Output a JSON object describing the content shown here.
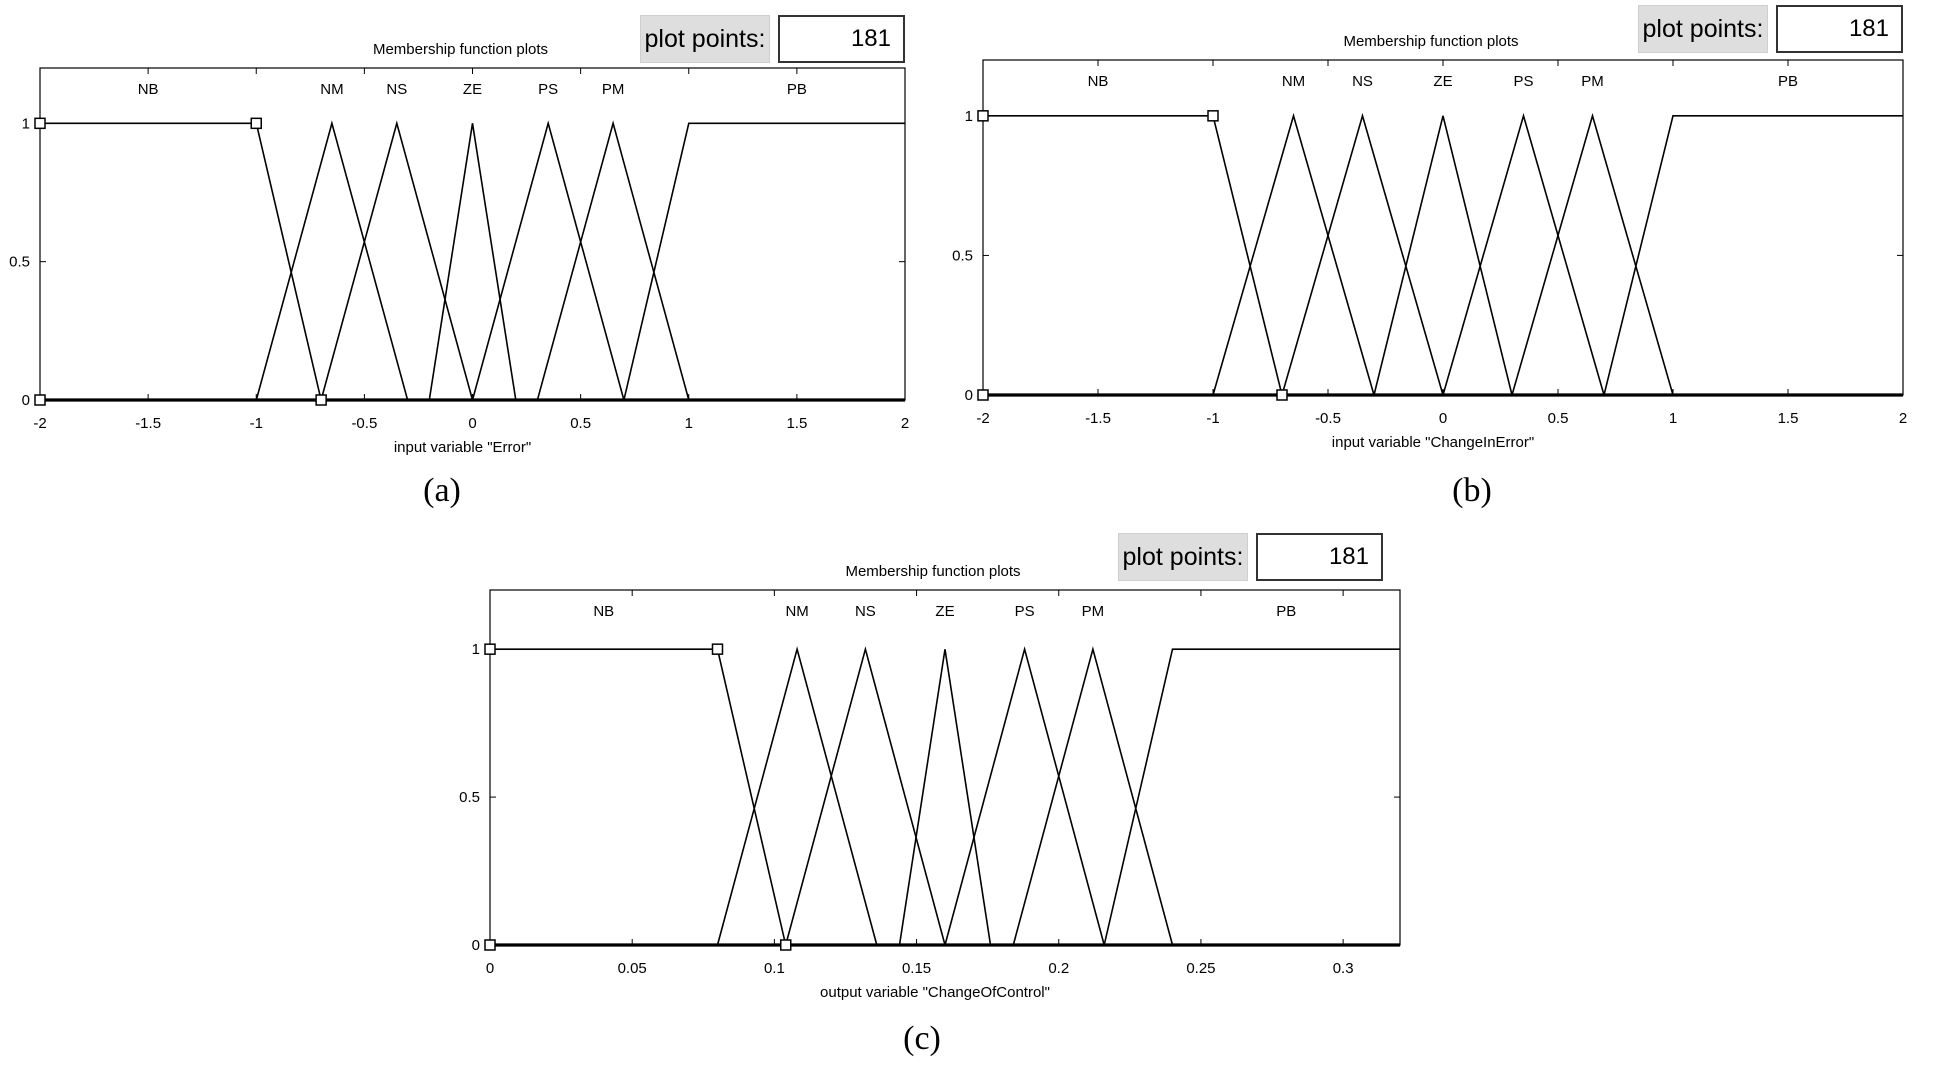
{
  "plot_points_label": "plot points:",
  "chart_data": [
    {
      "type": "line",
      "panel_title": "Membership function plots",
      "plot_points": "181",
      "caption": "(a)",
      "xlabel": "input variable \"Error\"",
      "xlim": [
        -2,
        2
      ],
      "ylim": [
        0,
        1.2
      ],
      "x_ticks": [
        -2,
        -1.5,
        -1,
        -0.5,
        0,
        0.5,
        1,
        1.5,
        2
      ],
      "x_tick_labels": [
        "-2",
        "-1.5",
        "-1",
        "-0.5",
        "0",
        "0.5",
        "1",
        "1.5",
        "2"
      ],
      "y_ticks": [
        0,
        0.5,
        1
      ],
      "y_tick_labels": [
        "0",
        "0.5",
        "1"
      ],
      "grid": false,
      "series": [
        {
          "name": "NB",
          "x": [
            -2,
            -1,
            -0.7
          ],
          "y": [
            1,
            1,
            0
          ],
          "label_x": -1.5
        },
        {
          "name": "NM",
          "x": [
            -1,
            -0.65,
            -0.3
          ],
          "y": [
            0,
            1,
            0
          ],
          "label_x": -0.65
        },
        {
          "name": "NS",
          "x": [
            -0.7,
            -0.35,
            0
          ],
          "y": [
            0,
            1,
            0
          ],
          "label_x": -0.35
        },
        {
          "name": "ZE",
          "x": [
            -0.2,
            0,
            0.2
          ],
          "y": [
            0,
            1,
            0
          ],
          "label_x": 0
        },
        {
          "name": "PS",
          "x": [
            0,
            0.35,
            0.7
          ],
          "y": [
            0,
            1,
            0
          ],
          "label_x": 0.35
        },
        {
          "name": "PM",
          "x": [
            0.3,
            0.65,
            1
          ],
          "y": [
            0,
            1,
            0
          ],
          "label_x": 0.65
        },
        {
          "name": "PB",
          "x": [
            0.7,
            1,
            2
          ],
          "y": [
            0,
            1,
            1
          ],
          "label_x": 1.5
        }
      ]
    },
    {
      "type": "line",
      "panel_title": "Membership function plots",
      "plot_points": "181",
      "caption": "(b)",
      "xlabel": "input variable \"ChangeInError\"",
      "xlim": [
        -2,
        2
      ],
      "ylim": [
        0,
        1.2
      ],
      "x_ticks": [
        -2,
        -1.5,
        -1,
        -0.5,
        0,
        0.5,
        1,
        1.5,
        2
      ],
      "x_tick_labels": [
        "-2",
        "-1.5",
        "-1",
        "-0.5",
        "0",
        "0.5",
        "1",
        "1.5",
        "2"
      ],
      "y_ticks": [
        0,
        0.5,
        1
      ],
      "y_tick_labels": [
        "0",
        "0.5",
        "1"
      ],
      "grid": false,
      "series": [
        {
          "name": "NB",
          "x": [
            -2,
            -1,
            -0.7
          ],
          "y": [
            1,
            1,
            0
          ],
          "label_x": -1.5
        },
        {
          "name": "NM",
          "x": [
            -1,
            -0.65,
            -0.3
          ],
          "y": [
            0,
            1,
            0
          ],
          "label_x": -0.65
        },
        {
          "name": "NS",
          "x": [
            -0.7,
            -0.35,
            0
          ],
          "y": [
            0,
            1,
            0
          ],
          "label_x": -0.35
        },
        {
          "name": "ZE",
          "x": [
            -0.3,
            0,
            0.3
          ],
          "y": [
            0,
            1,
            0
          ],
          "label_x": 0
        },
        {
          "name": "PS",
          "x": [
            0,
            0.35,
            0.7
          ],
          "y": [
            0,
            1,
            0
          ],
          "label_x": 0.35
        },
        {
          "name": "PM",
          "x": [
            0.3,
            0.65,
            1
          ],
          "y": [
            0,
            1,
            0
          ],
          "label_x": 0.65
        },
        {
          "name": "PB",
          "x": [
            0.7,
            1,
            2
          ],
          "y": [
            0,
            1,
            1
          ],
          "label_x": 1.5
        }
      ]
    },
    {
      "type": "line",
      "panel_title": "Membership function plots",
      "plot_points": "181",
      "caption": "(c)",
      "xlabel": "output variable \"ChangeOfControl\"",
      "xlim": [
        0,
        0.32
      ],
      "ylim": [
        0,
        1.2
      ],
      "x_ticks": [
        0,
        0.05,
        0.1,
        0.15,
        0.2,
        0.25,
        0.3
      ],
      "x_tick_labels": [
        "0",
        "0.05",
        "0.1",
        "0.15",
        "0.2",
        "0.25",
        "0.3"
      ],
      "y_ticks": [
        0,
        0.5,
        1
      ],
      "y_tick_labels": [
        "0",
        "0.5",
        "1"
      ],
      "grid": false,
      "series": [
        {
          "name": "NB",
          "x": [
            0,
            0.08,
            0.104
          ],
          "y": [
            1,
            1,
            0
          ],
          "label_x": 0.04
        },
        {
          "name": "NM",
          "x": [
            0.08,
            0.108,
            0.136
          ],
          "y": [
            0,
            1,
            0
          ],
          "label_x": 0.108
        },
        {
          "name": "NS",
          "x": [
            0.104,
            0.132,
            0.16
          ],
          "y": [
            0,
            1,
            0
          ],
          "label_x": 0.132
        },
        {
          "name": "ZE",
          "x": [
            0.144,
            0.16,
            0.176
          ],
          "y": [
            0,
            1,
            0
          ],
          "label_x": 0.16
        },
        {
          "name": "PS",
          "x": [
            0.16,
            0.188,
            0.216
          ],
          "y": [
            0,
            1,
            0
          ],
          "label_x": 0.188
        },
        {
          "name": "PM",
          "x": [
            0.184,
            0.212,
            0.24
          ],
          "y": [
            0,
            1,
            0
          ],
          "label_x": 0.212
        },
        {
          "name": "PB",
          "x": [
            0.216,
            0.24,
            0.32
          ],
          "y": [
            0,
            1,
            1
          ],
          "label_x": 0.28
        }
      ]
    }
  ]
}
